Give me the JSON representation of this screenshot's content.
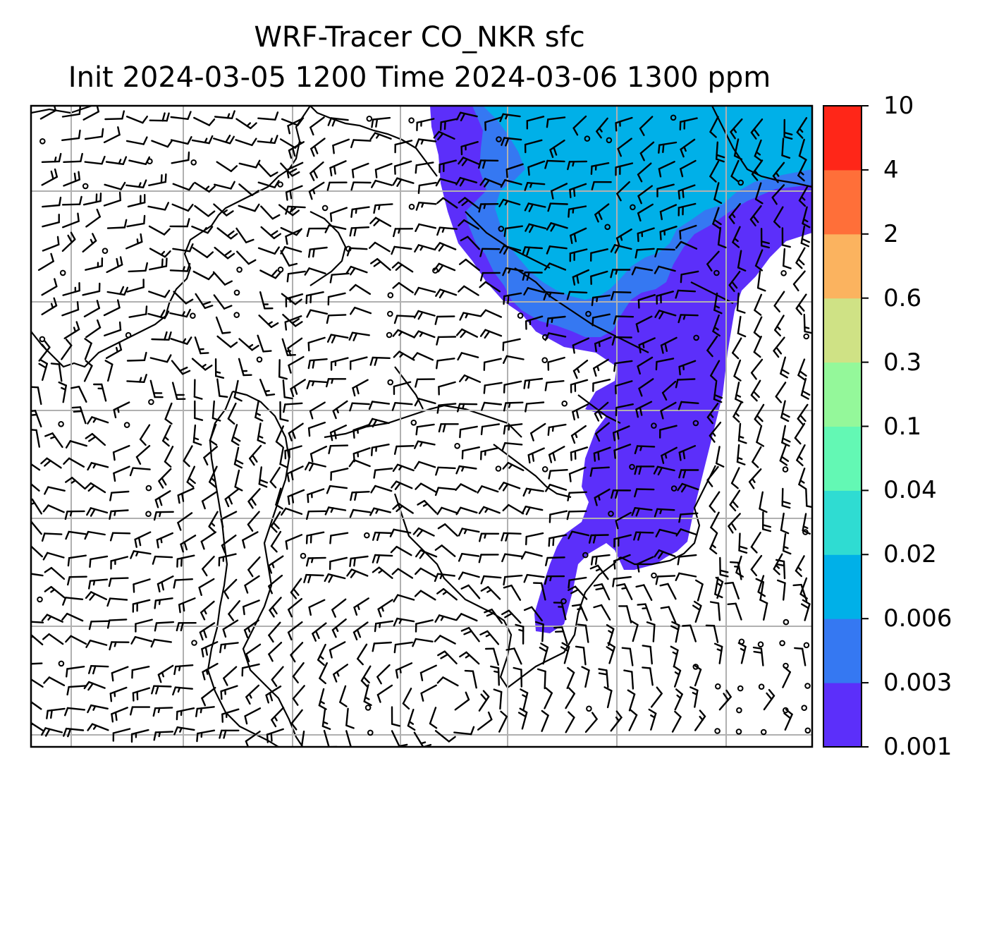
{
  "title": {
    "line1": "WRF-Tracer CO_NKR sfc",
    "line2": "Init 2024-03-05 1200 Time 2024-03-06 1300 ppm"
  },
  "colorbar": {
    "levels": [
      "0.001",
      "0.003",
      "0.006",
      "0.02",
      "0.04",
      "0.1",
      "0.3",
      "0.6",
      "2",
      "4",
      "10"
    ],
    "colors": [
      "#5c2ffa",
      "#3578f2",
      "#00b0e8",
      "#2fdcd2",
      "#63f8b4",
      "#94f89a",
      "#cfe285",
      "#fbb35f",
      "#ff6f39",
      "#ff2618"
    ]
  },
  "map": {
    "shaded_colors": {
      "low": "#5c2ffa",
      "mid": "#3578f2",
      "high": "#00b0e8"
    },
    "frame_color": "#000000",
    "grid_color": "#b0b0b0",
    "coastline_color": "#000000",
    "barb_color": "#000000"
  }
}
